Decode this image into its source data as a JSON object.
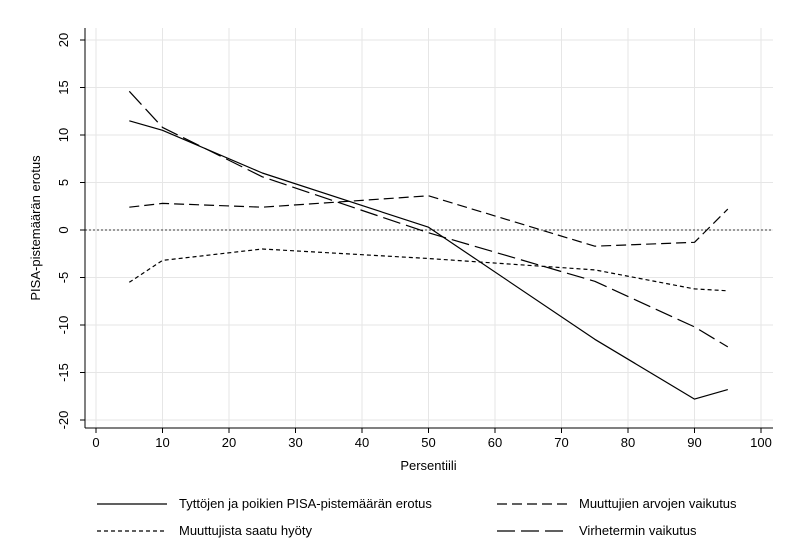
{
  "chart_data": {
    "type": "line",
    "title": "",
    "xlabel": "Persentiili",
    "ylabel": "PISA-pistemäärän erotus",
    "xlim": [
      0,
      100
    ],
    "ylim": [
      -20,
      20
    ],
    "xticks": [
      0,
      10,
      20,
      30,
      40,
      50,
      60,
      70,
      80,
      90,
      100
    ],
    "yticks": [
      20,
      15,
      10,
      5,
      0,
      -5,
      -10,
      -15,
      -20
    ],
    "grid": true,
    "reference_line_y": 0,
    "legend_position": "bottom",
    "series": [
      {
        "name": "Tyttöjen ja poikien PISA-pistemäärän erotus",
        "style": "solid",
        "x": [
          5,
          10,
          25,
          50,
          75,
          90,
          95
        ],
        "y": [
          11.5,
          10.5,
          6.0,
          0.3,
          -11.5,
          -17.8,
          -16.8
        ]
      },
      {
        "name": "Muuttujien arvojen vaikutus",
        "style": "dashed",
        "x": [
          5,
          10,
          25,
          50,
          75,
          90,
          95
        ],
        "y": [
          2.4,
          2.8,
          2.4,
          3.6,
          -1.7,
          -1.3,
          2.2
        ]
      },
      {
        "name": "Muuttujista saatu hyöty",
        "style": "short-dash",
        "x": [
          5,
          10,
          25,
          50,
          75,
          90,
          95
        ],
        "y": [
          -5.5,
          -3.2,
          -2.0,
          -3.0,
          -4.2,
          -6.2,
          -6.4
        ]
      },
      {
        "name": "Virhetermin vaikutus",
        "style": "long-dash",
        "x": [
          5,
          10,
          25,
          50,
          75,
          90,
          95
        ],
        "y": [
          14.6,
          10.8,
          5.6,
          -0.3,
          -5.4,
          -10.2,
          -12.3
        ]
      }
    ]
  }
}
